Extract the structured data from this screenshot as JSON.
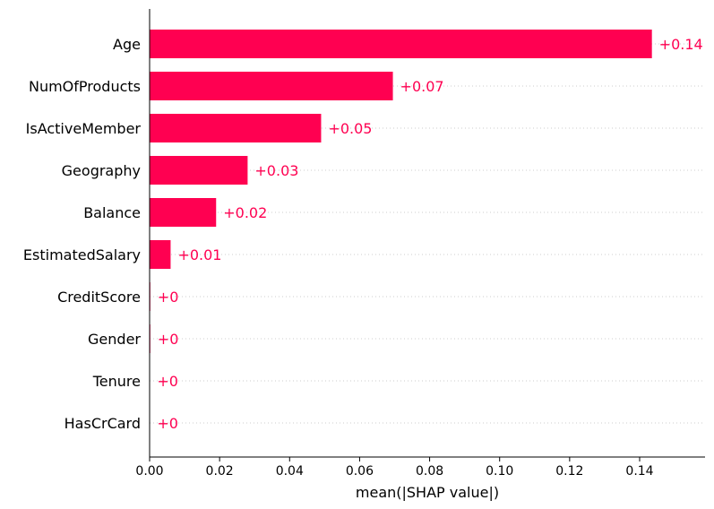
{
  "chart_data": {
    "type": "bar",
    "orientation": "horizontal",
    "categories": [
      "Age",
      "NumOfProducts",
      "IsActiveMember",
      "Geography",
      "Balance",
      "EstimatedSalary",
      "CreditScore",
      "Gender",
      "Tenure",
      "HasCrCard"
    ],
    "values": [
      0.1435,
      0.0695,
      0.049,
      0.028,
      0.019,
      0.006,
      0.0002,
      0.0002,
      0.0001,
      0.0001
    ],
    "value_labels": [
      "+0.14",
      "+0.07",
      "+0.05",
      "+0.03",
      "+0.02",
      "+0.01",
      "+0",
      "+0",
      "+0",
      "+0"
    ],
    "xlabel": "mean(|SHAP value|)",
    "xlim": [
      0,
      0.157
    ],
    "xticks": [
      0.0,
      0.02,
      0.04,
      0.06,
      0.08,
      0.1,
      0.12,
      0.14
    ],
    "xtick_labels": [
      "0.00",
      "0.02",
      "0.04",
      "0.06",
      "0.08",
      "0.10",
      "0.12",
      "0.14"
    ],
    "grid": "dotted horizontal lines",
    "colors": {
      "bar": "#ff0051",
      "value_label": "#ff0051",
      "axis": "#000000",
      "grid": "#cccccc"
    }
  }
}
